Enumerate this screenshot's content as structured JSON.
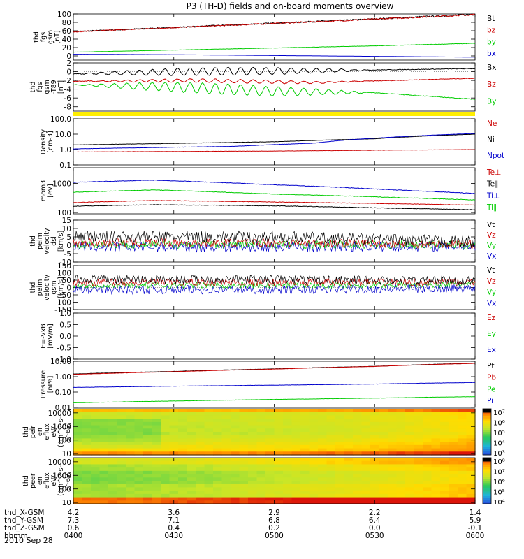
{
  "title": "P3 (TH-D) fields and on-board moments overview",
  "date": "2010 Sep 28",
  "chart_data": {
    "type": "line",
    "panels": [
      {
        "id": "fgs",
        "ylabel": [
          "thd",
          "fgs",
          "gsm",
          "[nT]"
        ],
        "ylim": [
          -10,
          100
        ],
        "yticks": [
          0,
          20,
          40,
          60,
          80,
          100
        ],
        "ytick_labels": [
          "0",
          "20",
          "40",
          "60",
          "80",
          "100"
        ],
        "legend": [
          {
            "label": "Bt",
            "color": "#000000"
          },
          {
            "label": "bz",
            "color": "#cc0000"
          },
          {
            "label": "by",
            "color": "#00cc00"
          },
          {
            "label": "bx",
            "color": "#0000cc"
          }
        ],
        "series": [
          {
            "name": "Bt",
            "color": "#000000",
            "x": [
              0,
              0.25,
              0.5,
              0.75,
              1
            ],
            "y": [
              58,
              68,
              78,
              88,
              99
            ]
          },
          {
            "name": "bz",
            "color": "#cc0000",
            "x": [
              0,
              0.25,
              0.5,
              0.75,
              1
            ],
            "y": [
              57.5,
              67.5,
              77.5,
              87.5,
              98.5
            ]
          },
          {
            "name": "by",
            "color": "#00cc00",
            "x": [
              0,
              0.25,
              0.5,
              0.75,
              1
            ],
            "y": [
              9,
              14,
              19,
              24,
              30
            ]
          },
          {
            "name": "bx",
            "color": "#0000cc",
            "x": [
              0,
              0.25,
              0.5,
              0.75,
              1
            ],
            "y": [
              4,
              3,
              1,
              -1,
              -3
            ]
          }
        ]
      },
      {
        "id": "fgs_dt",
        "ylabel": [
          "thd",
          "fgs",
          "gsm",
          "-T89",
          "[nT]"
        ],
        "ylim": [
          -9,
          2
        ],
        "yticks": [
          2,
          0,
          -2,
          -4,
          -6,
          -8
        ],
        "ytick_labels": [
          "2",
          "0",
          "-2",
          "-4",
          "-6",
          "-8"
        ],
        "legend": [
          {
            "label": "Bx",
            "color": "#000000"
          },
          {
            "label": "Bz",
            "color": "#cc0000"
          },
          {
            "label": "By",
            "color": "#00cc00"
          }
        ],
        "series": [
          {
            "name": "Bx",
            "color": "#000000",
            "x": [
              0,
              0.3,
              0.6,
              1
            ],
            "y": [
              -0.5,
              0,
              0.2,
              0.7
            ],
            "osc": 0.9
          },
          {
            "name": "Bz",
            "color": "#cc0000",
            "x": [
              0,
              0.3,
              0.6,
              1
            ],
            "y": [
              -2.2,
              -2,
              -2.5,
              -1.5
            ],
            "osc": 0.4
          },
          {
            "name": "By",
            "color": "#00cc00",
            "x": [
              0,
              0.25,
              0.5,
              0.75,
              1
            ],
            "y": [
              -3,
              -3.5,
              -4.5,
              -4.8,
              -6.3
            ],
            "osc": 1.2
          }
        ]
      },
      {
        "id": "density",
        "ylabel": [
          "Density",
          "[cm-3]"
        ],
        "ylim": [
          0.1,
          100
        ],
        "log": true,
        "yticks": [
          0.1,
          1,
          10,
          100
        ],
        "ytick_labels": [
          "0.1",
          "1.0",
          "10.0",
          "100.0"
        ],
        "legend": [
          {
            "label": "Ne",
            "color": "#cc0000"
          },
          {
            "label": "Ni",
            "color": "#000000"
          },
          {
            "label": "Npot",
            "color": "#0000cc"
          }
        ],
        "series": [
          {
            "name": "Ne",
            "color": "#cc0000",
            "x": [
              0,
              0.25,
              0.5,
              0.75,
              1
            ],
            "y": [
              0.7,
              0.75,
              0.8,
              0.9,
              1.0
            ]
          },
          {
            "name": "Ni",
            "color": "#000000",
            "x": [
              0,
              0.25,
              0.5,
              0.75,
              1
            ],
            "y": [
              2,
              2.5,
              3.2,
              5,
              10
            ]
          },
          {
            "name": "Npot",
            "color": "#0000cc",
            "x": [
              0,
              0.4,
              0.6,
              0.8,
              1
            ],
            "y": [
              1.1,
              1.6,
              2.6,
              6.5,
              11
            ]
          }
        ]
      },
      {
        "id": "temps",
        "ylabel": [
          "mom3",
          "[eV]"
        ],
        "ylim": [
          90,
          3500
        ],
        "log": true,
        "yticks": [
          100,
          1000
        ],
        "ytick_labels": [
          "100",
          "1000"
        ],
        "legend": [
          {
            "label": "Te⊥",
            "color": "#cc0000"
          },
          {
            "label": "Te∥",
            "color": "#000000"
          },
          {
            "label": "Ti⊥",
            "color": "#0000cc"
          },
          {
            "label": "Ti∥",
            "color": "#00cc00"
          }
        ],
        "series": [
          {
            "name": "Ti⊥",
            "color": "#0000cc",
            "x": [
              0,
              0.2,
              0.5,
              0.8,
              1
            ],
            "y": [
              1100,
              1300,
              900,
              600,
              450
            ]
          },
          {
            "name": "Ti∥",
            "color": "#00cc00",
            "x": [
              0,
              0.2,
              0.5,
              0.8,
              1
            ],
            "y": [
              500,
              600,
              430,
              330,
              270
            ]
          },
          {
            "name": "Te⊥",
            "color": "#cc0000",
            "x": [
              0,
              0.2,
              0.5,
              0.8,
              1
            ],
            "y": [
              220,
              260,
              230,
              200,
              180
            ]
          },
          {
            "name": "Te∥",
            "color": "#000000",
            "x": [
              0,
              0.2,
              0.5,
              0.8,
              1
            ],
            "y": [
              165,
              185,
              170,
              140,
              125
            ]
          }
        ]
      },
      {
        "id": "vel_dsl",
        "ylabel": [
          "thd",
          "peim",
          "velocity",
          "dsl",
          "[km/s]"
        ],
        "ylim": [
          -10,
          15
        ],
        "yticks": [
          15,
          10,
          5,
          0,
          -5,
          -10
        ],
        "ytick_labels": [
          "15",
          "10",
          "5",
          "0",
          "-5",
          "-10"
        ],
        "legend": [
          {
            "label": "Vt",
            "color": "#000000"
          },
          {
            "label": "Vz",
            "color": "#cc0000"
          },
          {
            "label": "Vy",
            "color": "#00cc00"
          },
          {
            "label": "Vx",
            "color": "#0000cc"
          }
        ],
        "series": [
          {
            "name": "Vx",
            "color": "#0000cc",
            "x": [
              0,
              0.5,
              1
            ],
            "y": [
              -1,
              -1,
              -0.5
            ],
            "noise": 3
          },
          {
            "name": "Vy",
            "color": "#00cc00",
            "x": [
              0,
              0.5,
              1
            ],
            "y": [
              0.5,
              0.5,
              0.3
            ],
            "noise": 2.5
          },
          {
            "name": "Vz",
            "color": "#cc0000",
            "x": [
              0,
              0.5,
              1
            ],
            "y": [
              1.5,
              1.5,
              0.5
            ],
            "noise": 2.5
          },
          {
            "name": "Vt",
            "color": "#000000",
            "x": [
              0,
              0.5,
              1
            ],
            "y": [
              5,
              5,
              2
            ],
            "noise": 3.5
          }
        ]
      },
      {
        "id": "vel_gsm",
        "ylabel": [
          "thd",
          "peim",
          "velocity",
          "gsm",
          "[km/s]"
        ],
        "ylim": [
          -150,
          150
        ],
        "yticks": [
          150,
          100,
          50,
          0,
          -50,
          -100,
          -150
        ],
        "ytick_labels": [
          "150",
          "100",
          "50",
          "0",
          "-50",
          "-100",
          "-150"
        ],
        "legend": [
          {
            "label": "Vt",
            "color": "#000000"
          },
          {
            "label": "Vz",
            "color": "#cc0000"
          },
          {
            "label": "Vy",
            "color": "#00cc00"
          },
          {
            "label": "Vx",
            "color": "#0000cc"
          }
        ],
        "series": [
          {
            "name": "Vx",
            "color": "#0000cc",
            "x": [
              0,
              0.5,
              1
            ],
            "y": [
              -15,
              -15,
              -5
            ],
            "noise": 30
          },
          {
            "name": "Vy",
            "color": "#00cc00",
            "x": [
              0,
              0.5,
              1
            ],
            "y": [
              15,
              15,
              20
            ],
            "noise": 20
          },
          {
            "name": "Vz",
            "color": "#cc0000",
            "x": [
              0,
              0.5,
              1
            ],
            "y": [
              35,
              35,
              35
            ],
            "noise": 25
          },
          {
            "name": "Vt",
            "color": "#000000",
            "x": [
              0,
              0.5,
              1
            ],
            "y": [
              55,
              55,
              45
            ],
            "noise": 30
          }
        ]
      },
      {
        "id": "efield",
        "ylabel": [
          "E=-VxB",
          "[mV/m]"
        ],
        "ylim": [
          -1,
          1
        ],
        "yticks": [
          1.0,
          0.5,
          0.0,
          -0.5,
          -1.0
        ],
        "ytick_labels": [
          "1.0",
          "0.5",
          "0.0",
          "-0.5",
          "-1.0"
        ],
        "legend": [
          {
            "label": "Ez",
            "color": "#cc0000"
          },
          {
            "label": "Ey",
            "color": "#00cc00"
          },
          {
            "label": "Ex",
            "color": "#0000cc"
          }
        ],
        "series": []
      },
      {
        "id": "pressure",
        "ylabel": [
          "Pressure",
          "[nPa]"
        ],
        "ylim": [
          0.01,
          10
        ],
        "log": true,
        "yticks": [
          0.01,
          0.1,
          1,
          10
        ],
        "ytick_labels": [
          "0.01",
          "0.10",
          "1.00",
          "10.00"
        ],
        "legend": [
          {
            "label": "Pt",
            "color": "#000000"
          },
          {
            "label": "Pb",
            "color": "#cc0000"
          },
          {
            "label": "Pe",
            "color": "#00cc00"
          },
          {
            "label": "Pi",
            "color": "#0000cc"
          }
        ],
        "series": [
          {
            "name": "Pt",
            "color": "#000000",
            "x": [
              0,
              0.25,
              0.5,
              0.75,
              1
            ],
            "y": [
              1.5,
              2.2,
              3.2,
              4.7,
              7.5
            ]
          },
          {
            "name": "Pb",
            "color": "#cc0000",
            "x": [
              0,
              0.25,
              0.5,
              0.75,
              1
            ],
            "y": [
              1.4,
              2.1,
              3.1,
              4.6,
              7.3
            ]
          },
          {
            "name": "Pi",
            "color": "#0000cc",
            "x": [
              0,
              0.25,
              0.5,
              0.75,
              1
            ],
            "y": [
              0.2,
              0.24,
              0.28,
              0.33,
              0.42
            ]
          },
          {
            "name": "Pe",
            "color": "#00cc00",
            "x": [
              0,
              0.25,
              0.5,
              0.75,
              1
            ],
            "y": [
              0.02,
              0.026,
              0.033,
              0.04,
              0.05
            ]
          }
        ]
      },
      {
        "id": "ion_spec",
        "type": "heatmap",
        "ylabel": [
          "thd",
          "peir",
          "en",
          "eflux",
          "eV/",
          "(cm^2-s-",
          "sr-eV)"
        ],
        "ylim": [
          8,
          20000
        ],
        "log": true,
        "yticks": [
          10,
          100,
          1000,
          10000
        ],
        "ytick_labels": [
          "10",
          "100",
          "1000",
          "10000"
        ],
        "colorbar_labels": [
          "10⁷",
          "10⁶",
          "10⁵",
          "10⁴",
          "10³"
        ]
      },
      {
        "id": "elec_spec",
        "type": "heatmap",
        "ylabel": [
          "thd",
          "peer",
          "en",
          "eflux",
          "eV/",
          "(cm^2-s-",
          "sr-eV)"
        ],
        "ylim": [
          8,
          20000
        ],
        "log": true,
        "yticks": [
          10,
          100,
          1000,
          10000
        ],
        "ytick_labels": [
          "10",
          "100",
          "1000",
          "10000"
        ],
        "colorbar_labels": [
          "10⁸",
          "10⁷",
          "10⁶",
          "10⁵",
          "10⁴"
        ]
      }
    ],
    "x_axis": {
      "rows": [
        {
          "label": "thd_X-GSM",
          "values": [
            "4.2",
            "3.6",
            "2.9",
            "2.2",
            "1.4"
          ]
        },
        {
          "label": "thd_Y-GSM",
          "values": [
            "7.3",
            "7.1",
            "6.8",
            "6.4",
            "5.9"
          ]
        },
        {
          "label": "thd_Z-GSM",
          "values": [
            "0.6",
            "0.4",
            "0.2",
            "0.0",
            "-0.1"
          ]
        },
        {
          "label": "hhmm",
          "values": [
            "0400",
            "0430",
            "0500",
            "0530",
            "0600"
          ]
        }
      ]
    }
  }
}
